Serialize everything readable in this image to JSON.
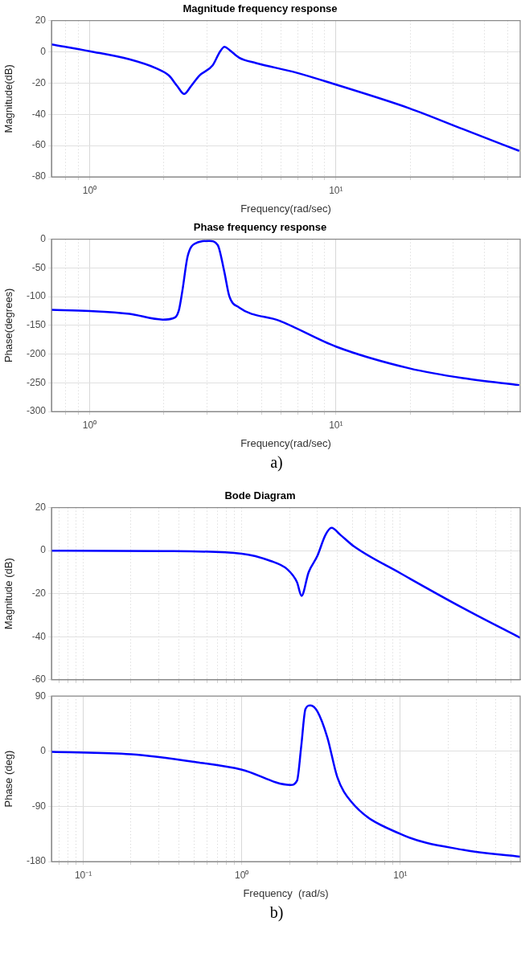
{
  "chart_data": [
    {
      "type": "line",
      "title": "Magnitude frequency response",
      "xlabel": "Frequency(rad/sec)",
      "ylabel": "Magnitude(dB)",
      "log": "x",
      "grid": true,
      "xlim": [
        0.7,
        56
      ],
      "ylim": [
        -80,
        20
      ],
      "yticks": [
        -80,
        -60,
        -40,
        -20,
        0,
        20
      ],
      "xticks": [
        {
          "value": 0.8,
          "label": null
        },
        {
          "value": 0.9,
          "label": null
        },
        {
          "value": 1,
          "label": "10⁰"
        },
        {
          "value": 2,
          "label": null
        },
        {
          "value": 3,
          "label": null
        },
        {
          "value": 4,
          "label": null
        },
        {
          "value": 5,
          "label": null
        },
        {
          "value": 6,
          "label": null
        },
        {
          "value": 7,
          "label": null
        },
        {
          "value": 8,
          "label": null
        },
        {
          "value": 9,
          "label": null
        },
        {
          "value": 10,
          "label": "10¹"
        },
        {
          "value": 20,
          "label": null
        },
        {
          "value": 30,
          "label": null
        },
        {
          "value": 40,
          "label": null
        },
        {
          "value": 50,
          "label": null
        }
      ],
      "series": [
        {
          "color": "#0000ff",
          "x": [
            0.7,
            1,
            1.45,
            1.86,
            2.1,
            2.27,
            2.42,
            2.58,
            2.79,
            3.16,
            3.38,
            3.53,
            3.69,
            4.05,
            4.74,
            6.9,
            10,
            19.9,
            32.8,
            55.5
          ],
          "values": [
            4.8,
            0.4,
            -4.8,
            -10.5,
            -15.2,
            -22,
            -27,
            -22,
            -15.2,
            -8.6,
            0,
            3.2,
            1.3,
            -3.8,
            -7.2,
            -13.3,
            -21,
            -36.2,
            -49.5,
            -63.4
          ]
        }
      ]
    },
    {
      "type": "line",
      "title": "Phase frequency response",
      "xlabel": "Frequency(rad/sec)",
      "ylabel": "Phase(degrees)",
      "log": "x",
      "grid": true,
      "xlim": [
        0.7,
        56
      ],
      "ylim": [
        -300,
        0
      ],
      "yticks": [
        -300,
        -250,
        -200,
        -150,
        -100,
        -50,
        0
      ],
      "xticks": [
        {
          "value": 0.8,
          "label": null
        },
        {
          "value": 0.9,
          "label": null
        },
        {
          "value": 1,
          "label": "10⁰"
        },
        {
          "value": 2,
          "label": null
        },
        {
          "value": 3,
          "label": null
        },
        {
          "value": 4,
          "label": null
        },
        {
          "value": 5,
          "label": null
        },
        {
          "value": 6,
          "label": null
        },
        {
          "value": 7,
          "label": null
        },
        {
          "value": 8,
          "label": null
        },
        {
          "value": 9,
          "label": null
        },
        {
          "value": 10,
          "label": "10¹"
        },
        {
          "value": 20,
          "label": null
        },
        {
          "value": 30,
          "label": null
        },
        {
          "value": 40,
          "label": null
        },
        {
          "value": 50,
          "label": null
        }
      ],
      "annotations": [
        "a)"
      ],
      "series": [
        {
          "color": "#0000ff",
          "x": [
            0.7,
            1,
            1.45,
            1.98,
            2.17,
            2.3,
            2.38,
            2.5,
            2.7,
            3.06,
            3.31,
            3.52,
            3.69,
            4.05,
            5.9,
            10,
            19.9,
            32.8,
            55.5
          ],
          "values": [
            -123,
            -125,
            -130,
            -140,
            -138,
            -125,
            -90,
            -30,
            -7,
            -3,
            -10,
            -56,
            -99,
            -119,
            -142,
            -187,
            -225,
            -242,
            -254
          ]
        }
      ]
    },
    {
      "type": "line",
      "title": "Bode Diagram",
      "ylabel": "Magnitude (dB)",
      "log": "x",
      "grid": true,
      "tick_labels": "y",
      "xlim": [
        0.063,
        57
      ],
      "ylim": [
        -60,
        20
      ],
      "yticks": [
        -60,
        -40,
        -20,
        0,
        20
      ],
      "xticks": [
        {
          "value": 0.07,
          "label": null
        },
        {
          "value": 0.08,
          "label": null
        },
        {
          "value": 0.09,
          "label": null
        },
        {
          "value": 0.1,
          "label": null
        },
        {
          "value": 0.2,
          "label": null
        },
        {
          "value": 0.3,
          "label": null
        },
        {
          "value": 0.4,
          "label": null
        },
        {
          "value": 0.5,
          "label": null
        },
        {
          "value": 0.6,
          "label": null
        },
        {
          "value": 0.7,
          "label": null
        },
        {
          "value": 0.8,
          "label": null
        },
        {
          "value": 0.9,
          "label": null
        },
        {
          "value": 1,
          "label": null
        },
        {
          "value": 2,
          "label": null
        },
        {
          "value": 3,
          "label": null
        },
        {
          "value": 4,
          "label": null
        },
        {
          "value": 5,
          "label": null
        },
        {
          "value": 6,
          "label": null
        },
        {
          "value": 7,
          "label": null
        },
        {
          "value": 8,
          "label": null
        },
        {
          "value": 9,
          "label": null
        },
        {
          "value": 10,
          "label": null
        },
        {
          "value": 20,
          "label": null
        },
        {
          "value": 30,
          "label": null
        },
        {
          "value": 40,
          "label": null
        },
        {
          "value": 50,
          "label": null
        }
      ],
      "series": [
        {
          "color": "#0000ff",
          "x": [
            0.063,
            0.32,
            1,
            1.52,
            1.93,
            2.23,
            2.38,
            2.64,
            2.99,
            3.37,
            3.68,
            4.19,
            5.09,
            10,
            25,
            57
          ],
          "values": [
            0,
            -0.2,
            -1.4,
            -4.8,
            -8.6,
            -14.7,
            -21,
            -10,
            -2.6,
            7.3,
            10.6,
            7.3,
            2,
            -10.5,
            -26.8,
            -40.5
          ]
        }
      ]
    },
    {
      "type": "line",
      "xlabel": "Frequency  (rad/s)",
      "ylabel": "Phase (deg)",
      "log": "x",
      "grid": true,
      "xlim": [
        0.063,
        57
      ],
      "ylim": [
        -180,
        90
      ],
      "yticks": [
        -180,
        -90,
        0,
        90
      ],
      "xticks": [
        {
          "value": 0.07,
          "label": null
        },
        {
          "value": 0.08,
          "label": null
        },
        {
          "value": 0.09,
          "label": null
        },
        {
          "value": 0.1,
          "label": "10⁻¹"
        },
        {
          "value": 0.2,
          "label": null
        },
        {
          "value": 0.3,
          "label": null
        },
        {
          "value": 0.4,
          "label": null
        },
        {
          "value": 0.5,
          "label": null
        },
        {
          "value": 0.6,
          "label": null
        },
        {
          "value": 0.7,
          "label": null
        },
        {
          "value": 0.8,
          "label": null
        },
        {
          "value": 0.9,
          "label": null
        },
        {
          "value": 1,
          "label": "10⁰"
        },
        {
          "value": 2,
          "label": null
        },
        {
          "value": 3,
          "label": null
        },
        {
          "value": 4,
          "label": null
        },
        {
          "value": 5,
          "label": null
        },
        {
          "value": 6,
          "label": null
        },
        {
          "value": 7,
          "label": null
        },
        {
          "value": 8,
          "label": null
        },
        {
          "value": 9,
          "label": null
        },
        {
          "value": 10,
          "label": "10¹"
        },
        {
          "value": 20,
          "label": null
        },
        {
          "value": 30,
          "label": null
        },
        {
          "value": 40,
          "label": null
        },
        {
          "value": 50,
          "label": null
        }
      ],
      "annotations": [
        "b)"
      ],
      "series": [
        {
          "color": "#0000ff",
          "x": [
            0.063,
            0.2,
            0.52,
            1,
            2.03,
            2.23,
            2.37,
            2.52,
            2.71,
            3,
            3.46,
            4,
            4.85,
            10,
            25,
            57
          ],
          "values": [
            -1,
            -5,
            -18,
            -30,
            -55,
            -48,
            8,
            69,
            75,
            65,
            23,
            -42,
            -81,
            -135,
            -161,
            -172
          ]
        }
      ]
    }
  ]
}
